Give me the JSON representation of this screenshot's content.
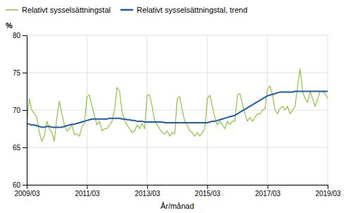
{
  "chart_data": {
    "type": "line",
    "xlabel": "År/månad",
    "ylabel": "%",
    "categories": [
      "2009/03",
      null,
      null,
      null,
      null,
      null,
      null,
      null,
      null,
      null,
      null,
      null,
      null,
      null,
      null,
      null,
      null,
      null,
      null,
      null,
      null,
      null,
      null,
      null,
      "2011/03",
      null,
      null,
      null,
      null,
      null,
      null,
      null,
      null,
      null,
      null,
      null,
      null,
      null,
      null,
      null,
      null,
      null,
      null,
      null,
      null,
      null,
      null,
      null,
      "2013/03",
      null,
      null,
      null,
      null,
      null,
      null,
      null,
      null,
      null,
      null,
      null,
      null,
      null,
      null,
      null,
      null,
      null,
      null,
      null,
      null,
      null,
      null,
      null,
      "2015/03",
      null,
      null,
      null,
      null,
      null,
      null,
      null,
      null,
      null,
      null,
      null,
      null,
      null,
      null,
      null,
      null,
      null,
      null,
      null,
      null,
      null,
      null,
      null,
      "2017/03",
      null,
      null,
      null,
      null,
      null,
      null,
      null,
      null,
      null,
      null,
      null,
      null,
      null,
      null,
      null,
      null,
      null,
      null,
      null,
      null,
      null,
      null,
      null,
      "2019/03"
    ],
    "series": [
      {
        "name": "Relativt sysselsättningstal",
        "color": "#8dc63f",
        "values": [
          68.2,
          71.5,
          70.0,
          69.5,
          69.0,
          67.0,
          65.8,
          66.5,
          68.5,
          67.5,
          67.0,
          65.8,
          69.0,
          71.2,
          69.5,
          68.0,
          67.2,
          67.5,
          68.0,
          66.7,
          66.8,
          66.5,
          67.8,
          68.2,
          71.8,
          72.0,
          70.5,
          69.2,
          68.0,
          68.5,
          67.2,
          67.5,
          67.5,
          68.0,
          68.5,
          70.0,
          73.0,
          72.5,
          69.8,
          68.5,
          68.0,
          67.5,
          67.0,
          67.2,
          68.0,
          67.5,
          68.2,
          67.5,
          72.0,
          72.0,
          70.5,
          68.5,
          68.0,
          67.5,
          67.0,
          66.8,
          67.2,
          66.5,
          67.0,
          66.8,
          71.5,
          71.8,
          70.0,
          68.5,
          68.0,
          67.2,
          67.0,
          66.5,
          67.0,
          66.5,
          67.0,
          67.5,
          71.5,
          72.0,
          70.5,
          69.0,
          68.0,
          68.5,
          68.0,
          67.5,
          68.5,
          68.0,
          68.5,
          68.5,
          72.0,
          72.2,
          70.8,
          69.5,
          68.5,
          69.0,
          68.5,
          69.0,
          69.5,
          69.5,
          70.0,
          70.2,
          72.8,
          73.2,
          72.0,
          70.0,
          69.5,
          70.2,
          70.5,
          70.0,
          70.5,
          69.5,
          70.0,
          70.5,
          73.2,
          75.5,
          72.5,
          71.5,
          71.0,
          72.5,
          71.5,
          70.5,
          71.5,
          72.5,
          72.5,
          72.2,
          71.5
        ]
      },
      {
        "name": "Relativt sysselsättningstal, trend",
        "color": "#1f5ba8",
        "values": [
          68.2,
          68.1,
          68.0,
          68.0,
          67.9,
          67.8,
          67.7,
          67.7,
          67.8,
          67.8,
          67.7,
          67.7,
          67.7,
          67.7,
          67.7,
          67.8,
          67.9,
          68.0,
          68.1,
          68.1,
          68.2,
          68.3,
          68.4,
          68.5,
          68.6,
          68.7,
          68.8,
          68.8,
          68.8,
          68.8,
          68.8,
          68.8,
          68.8,
          68.9,
          68.9,
          68.9,
          68.9,
          68.9,
          68.8,
          68.8,
          68.7,
          68.7,
          68.6,
          68.6,
          68.5,
          68.5,
          68.5,
          68.4,
          68.4,
          68.4,
          68.4,
          68.4,
          68.4,
          68.4,
          68.4,
          68.3,
          68.3,
          68.3,
          68.3,
          68.3,
          68.3,
          68.3,
          68.3,
          68.3,
          68.3,
          68.3,
          68.3,
          68.3,
          68.3,
          68.3,
          68.3,
          68.3,
          68.3,
          68.4,
          68.5,
          68.5,
          68.6,
          68.7,
          68.8,
          68.9,
          69.0,
          69.1,
          69.2,
          69.3,
          69.5,
          69.7,
          69.9,
          70.1,
          70.3,
          70.5,
          70.7,
          70.9,
          71.1,
          71.3,
          71.5,
          71.7,
          71.9,
          72.0,
          72.1,
          72.2,
          72.3,
          72.4,
          72.4,
          72.4,
          72.4,
          72.4,
          72.4,
          72.5,
          72.5,
          72.5,
          72.5,
          72.5,
          72.5,
          72.5,
          72.5,
          72.5,
          72.5,
          72.5,
          72.5,
          72.5,
          72.5
        ]
      }
    ],
    "ylim": [
      60,
      80
    ],
    "yticks": [
      60,
      65,
      70,
      75,
      80
    ],
    "grid": true,
    "legend": "upper left"
  }
}
